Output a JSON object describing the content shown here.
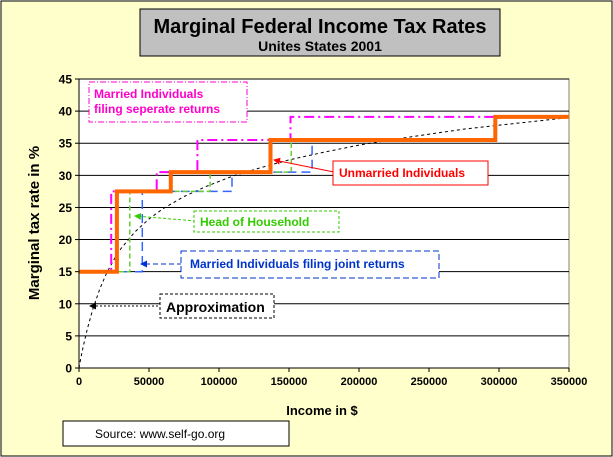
{
  "colors": {
    "frame_bg": "#FFFFCC",
    "plot_bg": "#FFFFFF",
    "title_box_bg": "#C0C0C0",
    "grid": "#000000",
    "unmarried": "#FF0000",
    "unmarried_line": "#FF6600",
    "married_separate": "#FF00CC",
    "married_joint": "#0033CC",
    "head_household": "#33CC00",
    "approximation": "#000000",
    "married_separate_line": "#FF00FF",
    "married_joint_line": "#3366FF",
    "head_household_line": "#66CC33"
  },
  "source": "Source: www.self-go.org",
  "chart_data": {
    "type": "line",
    "title": "Marginal Federal Income  Tax Rates",
    "subtitle": "Unites States 2001",
    "xlabel": "Income in $",
    "ylabel": "Marginal tax rate in %",
    "xlim": [
      0,
      350000
    ],
    "ylim": [
      0,
      45
    ],
    "x_ticks": [
      0,
      50000,
      100000,
      150000,
      200000,
      250000,
      300000,
      350000
    ],
    "x_tick_labels": [
      "0",
      "50000",
      "100000",
      "150000",
      "200000",
      "250000",
      "300000",
      "350000"
    ],
    "y_ticks": [
      0,
      5,
      10,
      15,
      20,
      25,
      30,
      35,
      40,
      45
    ],
    "y_tick_labels": [
      "0",
      "5",
      "10",
      "15",
      "20",
      "25",
      "30",
      "35",
      "40",
      "45"
    ],
    "gridlines": "horizontal",
    "series": [
      {
        "name": "Married Individuals filing seperate returns",
        "label_lines": [
          "Married Individuals",
          "filing seperate  returns"
        ],
        "style": "dash-dot",
        "x": [
          0,
          22970,
          22970,
          55500,
          55500,
          84575,
          84575,
          151050,
          151050,
          297350,
          297350,
          350000
        ],
        "y": [
          15,
          15,
          27.5,
          27.5,
          30.5,
          30.5,
          35.5,
          35.5,
          39.1,
          39.1,
          39.1,
          39.1
        ]
      },
      {
        "name": "Unmarried Individuals",
        "label_lines": [
          "Unmarried Individuals"
        ],
        "style": "solid-thick",
        "x": [
          0,
          27050,
          27050,
          65550,
          65550,
          136750,
          136750,
          297350,
          297350,
          350000
        ],
        "y": [
          15,
          15,
          27.5,
          27.5,
          30.5,
          30.5,
          35.5,
          35.5,
          39.1,
          39.1
        ]
      },
      {
        "name": "Head of Household",
        "label_lines": [
          "Head of Household"
        ],
        "style": "dashed",
        "x": [
          0,
          36250,
          36250,
          93650,
          93650,
          151650,
          151650,
          297350,
          297350,
          350000
        ],
        "y": [
          15,
          15,
          27.5,
          27.5,
          30.5,
          30.5,
          35.5,
          35.5,
          39.1,
          39.1
        ]
      },
      {
        "name": "Married Individuals filing joint returns",
        "label_lines": [
          "Married Individuals filing joint returns"
        ],
        "style": "long-dash",
        "x": [
          0,
          45200,
          45200,
          109250,
          109250,
          166500,
          166500,
          297350,
          297350,
          350000
        ],
        "y": [
          15,
          15,
          27.5,
          27.5,
          30.5,
          30.5,
          35.5,
          35.5,
          39.1,
          39.1
        ]
      },
      {
        "name": "Approximation",
        "label_lines": [
          "Approximation"
        ],
        "style": "dotted-curve",
        "x": [
          0,
          1000,
          3000,
          6000,
          10000,
          15000,
          20000,
          25000,
          30000,
          40000,
          50000,
          60000,
          75000,
          90000,
          110000,
          130000,
          150000,
          175000,
          200000,
          225000,
          250000,
          275000,
          300000,
          325000,
          350000
        ],
        "y": [
          0,
          1.18,
          3.35,
          6.13,
          9.25,
          12.4,
          14.9,
          16.9,
          18.6,
          21.2,
          23.2,
          24.8,
          26.7,
          28.2,
          29.9,
          31.2,
          32.4,
          33.6,
          34.7,
          35.6,
          36.4,
          37.2,
          37.8,
          38.4,
          39.0
        ]
      }
    ]
  }
}
